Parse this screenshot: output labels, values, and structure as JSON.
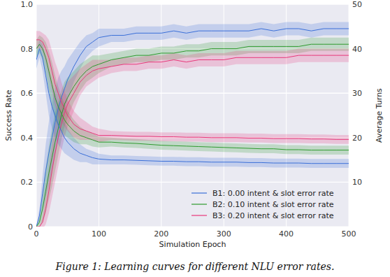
{
  "chart_data": {
    "type": "line",
    "caption": "Figure 1: Learning curves for different NLU error rates.",
    "x_label": "Simulation Epoch",
    "y_label": "Success Rate",
    "y2_label": "Average Turns",
    "x": [
      0,
      5,
      10,
      15,
      20,
      25,
      30,
      35,
      40,
      45,
      50,
      60,
      70,
      80,
      90,
      100,
      120,
      140,
      160,
      180,
      200,
      220,
      240,
      260,
      280,
      300,
      320,
      340,
      360,
      380,
      400,
      420,
      440,
      460,
      480,
      500
    ],
    "xlim": [
      0,
      500
    ],
    "xticks": [
      0,
      100,
      200,
      300,
      400,
      500
    ],
    "ylim": [
      0,
      1
    ],
    "yticks": [
      0,
      0.2,
      0.4,
      0.6,
      0.8,
      {
        "value": 1,
        "label": "1.0"
      }
    ],
    "y2lim": [
      0,
      50
    ],
    "y2ticks": [
      10,
      20,
      30,
      40,
      50
    ],
    "grid": true,
    "legend": "lower right",
    "series": [
      {
        "name": "B1: 0.00 intent & slot error rate",
        "color": "#3a6fd8",
        "values": [
          0,
          0.05,
          0.15,
          0.25,
          0.33,
          0.4,
          0.47,
          0.53,
          0.58,
          0.62,
          0.66,
          0.72,
          0.77,
          0.81,
          0.83,
          0.85,
          0.86,
          0.86,
          0.87,
          0.87,
          0.87,
          0.88,
          0.87,
          0.88,
          0.88,
          0.88,
          0.88,
          0.88,
          0.89,
          0.88,
          0.89,
          0.89,
          0.88,
          0.89,
          0.89,
          0.89
        ],
        "errors": [
          0,
          0.03,
          0.08,
          0.12,
          0.14,
          0.15,
          0.15,
          0.14,
          0.12,
          0.1,
          0.09,
          0.07,
          0.06,
          0.05,
          0.04,
          0.04,
          0.03,
          0.03,
          0.03,
          0.03,
          0.03,
          0.03,
          0.03,
          0.03,
          0.03,
          0.03,
          0.03,
          0.03,
          0.03,
          0.03,
          0.03,
          0.03,
          0.03,
          0.03,
          0.03,
          0.03
        ]
      },
      {
        "name": "B2: 0.10 intent & slot error rate",
        "color": "#2e9a2e",
        "values": [
          0,
          0.02,
          0.08,
          0.16,
          0.24,
          0.31,
          0.38,
          0.44,
          0.5,
          0.55,
          0.58,
          0.63,
          0.67,
          0.7,
          0.72,
          0.73,
          0.75,
          0.76,
          0.77,
          0.77,
          0.78,
          0.78,
          0.79,
          0.79,
          0.8,
          0.8,
          0.8,
          0.81,
          0.81,
          0.81,
          0.81,
          0.81,
          0.82,
          0.82,
          0.82,
          0.82
        ],
        "errors": [
          0,
          0.02,
          0.06,
          0.1,
          0.12,
          0.13,
          0.13,
          0.12,
          0.11,
          0.1,
          0.09,
          0.07,
          0.06,
          0.05,
          0.05,
          0.04,
          0.03,
          0.03,
          0.03,
          0.03,
          0.03,
          0.03,
          0.03,
          0.03,
          0.03,
          0.03,
          0.03,
          0.03,
          0.03,
          0.03,
          0.03,
          0.03,
          0.03,
          0.03,
          0.03,
          0.03
        ]
      },
      {
        "name": "B3: 0.20 intent & slot error rate",
        "color": "#e8387a",
        "values": [
          0,
          0,
          0.02,
          0.08,
          0.16,
          0.25,
          0.33,
          0.4,
          0.46,
          0.51,
          0.55,
          0.6,
          0.65,
          0.68,
          0.7,
          0.71,
          0.72,
          0.73,
          0.73,
          0.74,
          0.74,
          0.75,
          0.74,
          0.75,
          0.75,
          0.75,
          0.76,
          0.76,
          0.76,
          0.76,
          0.76,
          0.77,
          0.77,
          0.77,
          0.77,
          0.77
        ],
        "errors": [
          0,
          0,
          0.03,
          0.07,
          0.1,
          0.12,
          0.13,
          0.13,
          0.12,
          0.11,
          0.1,
          0.08,
          0.06,
          0.05,
          0.05,
          0.04,
          0.03,
          0.03,
          0.03,
          0.03,
          0.03,
          0.03,
          0.03,
          0.03,
          0.03,
          0.03,
          0.03,
          0.03,
          0.03,
          0.03,
          0.03,
          0.03,
          0.03,
          0.03,
          0.03,
          0.03
        ]
      },
      {
        "color": "#3a6fd8",
        "axis": "y2",
        "values": [
          37.5,
          40,
          38,
          34,
          30,
          27,
          25,
          23,
          21.5,
          20,
          19,
          17.5,
          16.5,
          16,
          15.5,
          15.2,
          15,
          15,
          14.9,
          14.8,
          14.7,
          14.7,
          14.6,
          14.6,
          14.5,
          14.5,
          14.5,
          14.4,
          14.4,
          14.3,
          14.3,
          14.3,
          14.2,
          14.2,
          14.2,
          14.2
        ],
        "errors": [
          2,
          2,
          3,
          4,
          5,
          5,
          5,
          4.5,
          4,
          3.5,
          3,
          2.5,
          2,
          1.5,
          1.5,
          1.2,
          1,
          1,
          1,
          1,
          1,
          1,
          1,
          1,
          1,
          1,
          1,
          1,
          1,
          1,
          1,
          1,
          1,
          1,
          1,
          1
        ]
      },
      {
        "color": "#2e9a2e",
        "axis": "y2",
        "values": [
          40,
          41,
          40,
          38,
          35,
          32,
          29,
          27,
          25.5,
          24,
          23,
          21.5,
          20.5,
          20,
          19.5,
          19,
          19,
          18.8,
          18.7,
          18.5,
          18.3,
          18.2,
          18.1,
          18,
          17.9,
          17.8,
          17.7,
          17.6,
          17.5,
          17.5,
          17.3,
          17.3,
          17.2,
          17.2,
          17.2,
          17.2
        ],
        "errors": [
          2,
          2,
          2.5,
          3.5,
          4.5,
          5,
          5,
          4.5,
          4,
          3.5,
          3,
          2.5,
          2,
          1.5,
          1.5,
          1.2,
          1,
          1,
          1,
          1,
          1,
          1,
          1,
          1,
          1,
          1,
          1,
          1,
          1,
          1,
          1,
          1,
          1,
          1,
          1,
          1
        ]
      },
      {
        "color": "#e8387a",
        "axis": "y2",
        "values": [
          42,
          42,
          41.5,
          40,
          38,
          35,
          32,
          30,
          28,
          26.5,
          25,
          23,
          22,
          21.5,
          21,
          20.5,
          20.5,
          20.4,
          20.3,
          20.3,
          20.2,
          20.2,
          20.1,
          20.1,
          20,
          20,
          20,
          19.9,
          19.9,
          19.8,
          19.8,
          19.8,
          19.7,
          19.7,
          19.6,
          19.6
        ],
        "errors": [
          2,
          2,
          2,
          3,
          4,
          4.5,
          5,
          5,
          4.5,
          4,
          3.5,
          3,
          2.5,
          2,
          1.5,
          1.5,
          1,
          1,
          1,
          1,
          1,
          1,
          1,
          1,
          1,
          1,
          1,
          1,
          1,
          1,
          1,
          1,
          1,
          1,
          1,
          1
        ]
      }
    ]
  }
}
